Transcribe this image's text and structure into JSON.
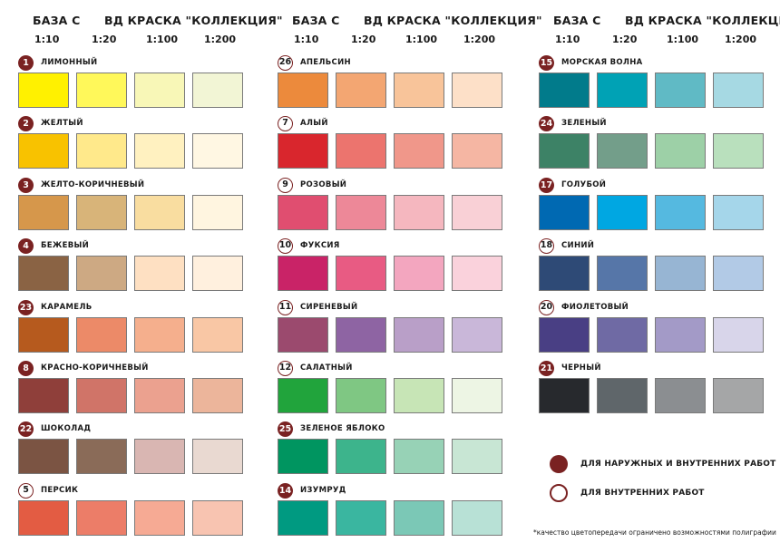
{
  "header": {
    "base_label": "БАЗА С",
    "paint_label": "ВД КРАСКА \"КОЛЛЕКЦИЯ\"",
    "ratios": [
      "1:10",
      "1:20",
      "1:100",
      "1:200"
    ]
  },
  "columns": [
    {
      "colors": [
        {
          "number": "1",
          "name": "ЛИМОННЫЙ",
          "type": "filled",
          "swatches": [
            "#fff100",
            "#fff85a",
            "#f8f7b7",
            "#f2f5d5"
          ]
        },
        {
          "number": "2",
          "name": "ЖЕЛТЫЙ",
          "type": "filled",
          "swatches": [
            "#f8c200",
            "#ffe98b",
            "#fff1c0",
            "#fff7e3"
          ]
        },
        {
          "number": "3",
          "name": "ЖЕЛТО-КОРИЧНЕВЫЙ",
          "type": "filled",
          "swatches": [
            "#d6974b",
            "#d8b479",
            "#f9dda0",
            "#fff5e0"
          ]
        },
        {
          "number": "4",
          "name": "БЕЖЕВЫЙ",
          "type": "filled",
          "swatches": [
            "#8a6344",
            "#cda983",
            "#fee0c2",
            "#fff0de"
          ]
        },
        {
          "number": "23",
          "name": "КАРАМЕЛЬ",
          "type": "filled",
          "swatches": [
            "#b65a1e",
            "#ec8a68",
            "#f5af8d",
            "#f9c7a5"
          ]
        },
        {
          "number": "8",
          "name": "КРАСНО-КОРИЧНЕВЫЙ",
          "type": "filled",
          "swatches": [
            "#8f3f3a",
            "#d07468",
            "#eba18f",
            "#ecb59b"
          ]
        },
        {
          "number": "22",
          "name": "ШОКОЛАД",
          "type": "filled",
          "swatches": [
            "#7b5443",
            "#8a6b58",
            "#d9b6b2",
            "#e9d9d1"
          ]
        },
        {
          "number": "5",
          "name": "ПЕРСИК",
          "type": "outline",
          "swatches": [
            "#e35c43",
            "#ec7d68",
            "#f6aa94",
            "#f8c4b1"
          ]
        }
      ]
    },
    {
      "colors": [
        {
          "number": "26",
          "name": "АПЕЛЬСИН",
          "type": "outline",
          "swatches": [
            "#ec8a3c",
            "#f3a672",
            "#f8c49a",
            "#fde0c8"
          ]
        },
        {
          "number": "7",
          "name": "АЛЫЙ",
          "type": "outline",
          "swatches": [
            "#d9262d",
            "#ec746e",
            "#f0978a",
            "#f5b6a3"
          ]
        },
        {
          "number": "9",
          "name": "РОЗОВЫЙ",
          "type": "outline",
          "swatches": [
            "#e04e70",
            "#ed8898",
            "#f5b7bf",
            "#f9d0d6"
          ]
        },
        {
          "number": "10",
          "name": "ФУКСИЯ",
          "type": "outline",
          "swatches": [
            "#c92367",
            "#e85b83",
            "#f3a6bf",
            "#fad2dc"
          ]
        },
        {
          "number": "11",
          "name": "СИРЕНЕВЫЙ",
          "type": "outline",
          "swatches": [
            "#9b4a6e",
            "#8e64a3",
            "#b99fc8",
            "#c9b7d9"
          ]
        },
        {
          "number": "12",
          "name": "САЛАТНЫЙ",
          "type": "outline",
          "swatches": [
            "#21a43c",
            "#7fc783",
            "#c7e5b6",
            "#edf5e4"
          ]
        },
        {
          "number": "25",
          "name": "ЗЕЛЕНОЕ ЯБЛОКО",
          "type": "filled",
          "swatches": [
            "#009560",
            "#3db48c",
            "#97d2b6",
            "#c8e6d4"
          ]
        },
        {
          "number": "14",
          "name": "ИЗУМРУД",
          "type": "filled",
          "swatches": [
            "#009a81",
            "#3ab6a0",
            "#7bc8b6",
            "#b8e1d6"
          ]
        }
      ]
    },
    {
      "colors": [
        {
          "number": "15",
          "name": "МОРСКАЯ ВОЛНА",
          "type": "filled",
          "swatches": [
            "#017b8b",
            "#00a2b5",
            "#60bac5",
            "#a6d9e3"
          ]
        },
        {
          "number": "24",
          "name": "ЗЕЛЕНЫЙ",
          "type": "filled",
          "swatches": [
            "#3d8266",
            "#739e8a",
            "#9dd0a7",
            "#b9e0bd"
          ]
        },
        {
          "number": "17",
          "name": "ГОЛУБОЙ",
          "type": "filled",
          "swatches": [
            "#0069b2",
            "#00a7e2",
            "#55b9e0",
            "#a5d6ea"
          ]
        },
        {
          "number": "18",
          "name": "СИНИЙ",
          "type": "outline",
          "swatches": [
            "#2e4a76",
            "#5676a8",
            "#97b5d3",
            "#b2cae6"
          ]
        },
        {
          "number": "20",
          "name": "ФИОЛЕТОВЫЙ",
          "type": "outline",
          "swatches": [
            "#493f84",
            "#6f6aa4",
            "#a39ac7",
            "#d8d5ea"
          ]
        },
        {
          "number": "21",
          "name": "ЧЕРНЫЙ",
          "type": "filled",
          "swatches": [
            "#27292d",
            "#5f666a",
            "#8b8e91",
            "#a5a6a7"
          ]
        }
      ]
    }
  ],
  "legend": [
    {
      "type": "filled",
      "text": "ДЛЯ НАРУЖНЫХ И ВНУТРЕННИХ РАБОТ"
    },
    {
      "type": "outline",
      "text": "ДЛЯ ВНУТРЕННИХ РАБОТ"
    }
  ],
  "footnote": "*качество цветопередачи ограничено возможностями полиграфии"
}
